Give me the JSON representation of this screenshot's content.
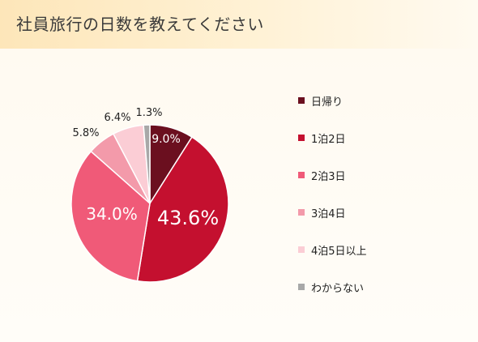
{
  "title": "社員旅行の日数を教えてください",
  "chart_data": {
    "type": "pie",
    "categories": [
      "日帰り",
      "1泊2日",
      "2泊3日",
      "3泊4日",
      "4泊5日以上",
      "わからない"
    ],
    "values": [
      9.0,
      43.6,
      34.0,
      5.8,
      6.4,
      1.3
    ],
    "labels": [
      "9.0%",
      "43.6%",
      "34.0%",
      "5.8%",
      "6.4%",
      "1.3%"
    ],
    "colors": [
      "#6b0f1f",
      "#c4102f",
      "#f05a78",
      "#f39aaa",
      "#fbcdd5",
      "#a8a8a8"
    ],
    "legend_position": "right"
  }
}
